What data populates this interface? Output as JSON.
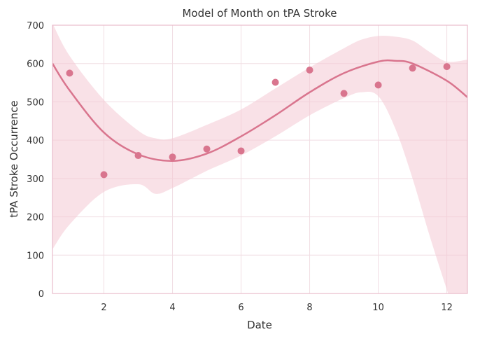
{
  "chart_data": {
    "type": "scatter",
    "title": "Model of Month on tPA Stroke",
    "xlabel": "Date",
    "ylabel": "tPA Stroke Occurrence",
    "xlim": [
      0.5,
      12.6
    ],
    "ylim": [
      0,
      700
    ],
    "x_ticks": [
      2,
      4,
      6,
      8,
      10,
      12
    ],
    "y_ticks": [
      0,
      100,
      200,
      300,
      400,
      500,
      600,
      700
    ],
    "grid": true,
    "colors": {
      "points": "#d9758e",
      "fit_line": "#d9758e",
      "band": "#f4c9d3",
      "spine": "#e8bccb",
      "grid": "#f1dde3"
    },
    "points": [
      {
        "x": 1,
        "y": 575
      },
      {
        "x": 2,
        "y": 310
      },
      {
        "x": 3,
        "y": 360
      },
      {
        "x": 4,
        "y": 356
      },
      {
        "x": 5,
        "y": 377
      },
      {
        "x": 6,
        "y": 372
      },
      {
        "x": 7,
        "y": 551
      },
      {
        "x": 8,
        "y": 583
      },
      {
        "x": 9,
        "y": 522
      },
      {
        "x": 10,
        "y": 544
      },
      {
        "x": 11,
        "y": 588
      },
      {
        "x": 12,
        "y": 592
      }
    ],
    "fit": {
      "x": [
        0.5,
        1,
        2,
        3,
        4,
        5,
        6,
        7,
        8,
        9,
        10,
        10.5,
        11,
        12,
        12.6
      ],
      "y": [
        600,
        530,
        420,
        363,
        346,
        365,
        410,
        465,
        525,
        575,
        605,
        607,
        600,
        555,
        512
      ]
    },
    "band": {
      "x": [
        0.5,
        1,
        2,
        3,
        3.5,
        4,
        5,
        6,
        7,
        8,
        9,
        9.5,
        10,
        10.5,
        11,
        11.5,
        12,
        12.6
      ],
      "upper": [
        705,
        620,
        505,
        425,
        405,
        405,
        440,
        480,
        535,
        590,
        640,
        662,
        672,
        670,
        660,
        630,
        605,
        610
      ],
      "lower": [
        115,
        180,
        265,
        285,
        260,
        275,
        320,
        360,
        410,
        465,
        510,
        525,
        515,
        430,
        300,
        150,
        10,
        -150
      ]
    }
  }
}
